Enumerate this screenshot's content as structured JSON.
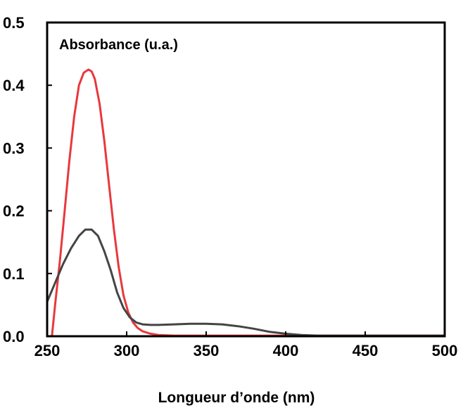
{
  "chart_data": {
    "type": "line",
    "title": "",
    "ylabel": "Absorbance (u.a.)",
    "xlabel": "Longueur d’onde (nm)",
    "xlim": [
      250,
      500
    ],
    "ylim": [
      0.0,
      0.5
    ],
    "xticks": [
      250,
      300,
      350,
      400,
      450,
      500
    ],
    "xtick_labels": [
      "250",
      "300",
      "350",
      "400",
      "450",
      "500"
    ],
    "yticks": [
      0.0,
      0.1,
      0.2,
      0.3,
      0.4,
      0.5
    ],
    "ytick_labels": [
      "0.0",
      "0.1",
      "0.2",
      "0.3",
      "0.4",
      "0.5"
    ],
    "grid": false,
    "legend": "none",
    "series": [
      {
        "color": "#e8383d",
        "x": [
          253,
          255,
          258,
          261,
          264,
          267,
          270,
          273,
          276,
          278,
          280,
          283,
          286,
          289,
          292,
          295,
          298,
          301,
          304,
          307,
          310,
          315,
          320,
          330,
          340,
          350,
          360,
          380,
          400,
          420,
          450,
          480,
          500
        ],
        "y": [
          0.0,
          0.05,
          0.12,
          0.2,
          0.28,
          0.35,
          0.4,
          0.42,
          0.425,
          0.422,
          0.41,
          0.37,
          0.31,
          0.24,
          0.17,
          0.11,
          0.065,
          0.038,
          0.022,
          0.013,
          0.008,
          0.004,
          0.002,
          0.001,
          0.001,
          0.001,
          0.001,
          0.001,
          0.001,
          0.001,
          0.001,
          0.001,
          0.001
        ]
      },
      {
        "color": "#444444",
        "x": [
          250,
          255,
          260,
          265,
          270,
          274,
          278,
          282,
          286,
          290,
          294,
          298,
          302,
          306,
          310,
          315,
          320,
          330,
          340,
          350,
          360,
          370,
          380,
          390,
          400,
          410,
          420,
          450,
          480,
          500
        ],
        "y": [
          0.055,
          0.085,
          0.115,
          0.14,
          0.16,
          0.17,
          0.17,
          0.16,
          0.135,
          0.105,
          0.07,
          0.045,
          0.03,
          0.022,
          0.019,
          0.018,
          0.018,
          0.019,
          0.02,
          0.02,
          0.019,
          0.016,
          0.012,
          0.007,
          0.004,
          0.002,
          0.001,
          0.001,
          0.001,
          0.001
        ]
      }
    ]
  }
}
